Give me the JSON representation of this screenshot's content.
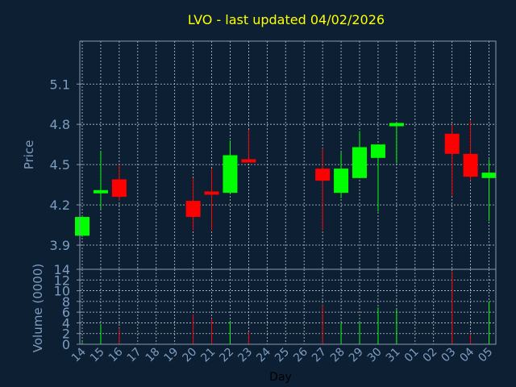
{
  "chart_data": {
    "type": "candlestick",
    "title": "LVO - last updated 04/02/2026",
    "xlabel": "Day",
    "price_label": "Price",
    "volume_label": "Volume (0000)",
    "price_ylim": [
      3.72,
      5.42
    ],
    "price_ticks": [
      "3.9",
      "4.2",
      "4.5",
      "4.8",
      "5.1"
    ],
    "volume_ylim": [
      0,
      14
    ],
    "volume_ticks": [
      "0",
      "2",
      "4",
      "6",
      "8",
      "10",
      "12",
      "14"
    ],
    "x_labels": [
      "14",
      "15",
      "16",
      "17",
      "18",
      "19",
      "20",
      "21",
      "22",
      "23",
      "24",
      "25",
      "26",
      "27",
      "28",
      "29",
      "30",
      "31",
      "01",
      "02",
      "03",
      "04",
      "05"
    ],
    "grid": true,
    "candles": [
      {
        "x": 0,
        "open": 3.97,
        "high": 4.12,
        "low": 3.96,
        "close": 4.11
      },
      {
        "x": 1,
        "open": 4.29,
        "high": 4.6,
        "low": 4.17,
        "close": 4.31
      },
      {
        "x": 2,
        "open": 4.39,
        "high": 4.5,
        "low": 4.23,
        "close": 4.26
      },
      {
        "x": 6,
        "open": 4.23,
        "high": 4.4,
        "low": 4.01,
        "close": 4.11
      },
      {
        "x": 7,
        "open": 4.3,
        "high": 4.47,
        "low": 4.01,
        "close": 4.28
      },
      {
        "x": 8,
        "open": 4.29,
        "high": 4.68,
        "low": 4.28,
        "close": 4.57
      },
      {
        "x": 9,
        "open": 4.54,
        "high": 4.76,
        "low": 4.52,
        "close": 4.52
      },
      {
        "x": 13,
        "open": 4.47,
        "high": 4.62,
        "low": 4.01,
        "close": 4.38
      },
      {
        "x": 14,
        "open": 4.29,
        "high": 4.59,
        "low": 4.25,
        "close": 4.47
      },
      {
        "x": 15,
        "open": 4.4,
        "high": 4.75,
        "low": 4.4,
        "close": 4.63
      },
      {
        "x": 16,
        "open": 4.55,
        "high": 4.65,
        "low": 4.15,
        "close": 4.65
      },
      {
        "x": 17,
        "open": 4.79,
        "high": 4.81,
        "low": 4.51,
        "close": 4.81
      },
      {
        "x": 20,
        "open": 4.73,
        "high": 4.8,
        "low": 4.27,
        "close": 4.58
      },
      {
        "x": 21,
        "open": 4.58,
        "high": 4.83,
        "low": 4.38,
        "close": 4.41
      },
      {
        "x": 22,
        "open": 4.4,
        "high": 4.54,
        "low": 4.08,
        "close": 4.44
      }
    ],
    "volumes": [
      {
        "x": 0,
        "value": 0.4,
        "dir": "up"
      },
      {
        "x": 1,
        "value": 3.6,
        "dir": "up"
      },
      {
        "x": 2,
        "value": 3.0,
        "dir": "down"
      },
      {
        "x": 6,
        "value": 5.6,
        "dir": "down"
      },
      {
        "x": 7,
        "value": 4.8,
        "dir": "down"
      },
      {
        "x": 8,
        "value": 4.4,
        "dir": "up"
      },
      {
        "x": 9,
        "value": 2.3,
        "dir": "down"
      },
      {
        "x": 13,
        "value": 7.3,
        "dir": "down"
      },
      {
        "x": 14,
        "value": 4.0,
        "dir": "up"
      },
      {
        "x": 15,
        "value": 4.2,
        "dir": "up"
      },
      {
        "x": 16,
        "value": 6.9,
        "dir": "up"
      },
      {
        "x": 17,
        "value": 6.6,
        "dir": "up"
      },
      {
        "x": 20,
        "value": 13.6,
        "dir": "down"
      },
      {
        "x": 21,
        "value": 1.9,
        "dir": "down"
      },
      {
        "x": 22,
        "value": 8.0,
        "dir": "up"
      }
    ],
    "colors": {
      "background": "#0d1f33",
      "title": "#ffff00",
      "axis_text": "#7d9dc0",
      "frame": "#8a9bb0",
      "grid": "#c0c8d0",
      "up": "#00ff00",
      "down": "#ff0000"
    }
  }
}
